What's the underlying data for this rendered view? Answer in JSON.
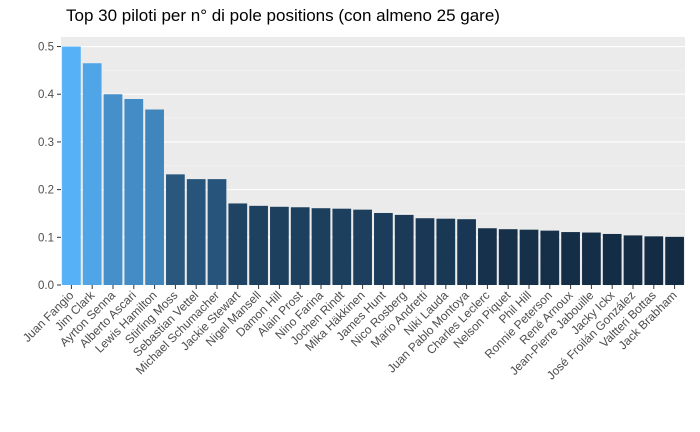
{
  "chart_data": {
    "type": "bar",
    "title": "Top 30 piloti per n° di pole positions (con almeno 25 gare)",
    "xlabel": "",
    "ylabel": "",
    "ylim": [
      0,
      0.52
    ],
    "yticks": [
      "0.0",
      "0.1",
      "0.2",
      "0.3",
      "0.4",
      "0.5"
    ],
    "grid": true,
    "legend": "none",
    "categories": [
      "Juan Fangio",
      "Jim Clark",
      "Ayrton Senna",
      "Alberto Ascari",
      "Lewis Hamilton",
      "Stirling Moss",
      "Sebastian Vettel",
      "Michael Schumacher",
      "Jackie Stewart",
      "Nigel Mansell",
      "Damon Hill",
      "Alain Prost",
      "Nino Farina",
      "Jochen Rindt",
      "Mika Häkkinen",
      "James Hunt",
      "Nico Rosberg",
      "Mario Andretti",
      "Niki Lauda",
      "Juan Pablo Montoya",
      "Charles Leclerc",
      "Nelson Piquet",
      "Phil Hill",
      "Ronnie Peterson",
      "René Arnoux",
      "Jean-Pierre Jabouille",
      "Jacky Ickx",
      "José Froilán González",
      "Valtteri Bottas",
      "Jack Brabham"
    ],
    "values": [
      0.5,
      0.465,
      0.4,
      0.39,
      0.368,
      0.232,
      0.222,
      0.222,
      0.171,
      0.166,
      0.164,
      0.163,
      0.161,
      0.16,
      0.158,
      0.151,
      0.147,
      0.14,
      0.139,
      0.138,
      0.119,
      0.117,
      0.116,
      0.114,
      0.111,
      0.11,
      0.107,
      0.104,
      0.102,
      0.101
    ],
    "colors": {
      "panel": "#ebebeb",
      "grid_major": "#ffffff",
      "grid_minor": "#f5f5f5",
      "bar_high": "#56b1f7",
      "bar_low": "#132b43",
      "tick": "#333333",
      "text": "#4d4d4d"
    }
  }
}
